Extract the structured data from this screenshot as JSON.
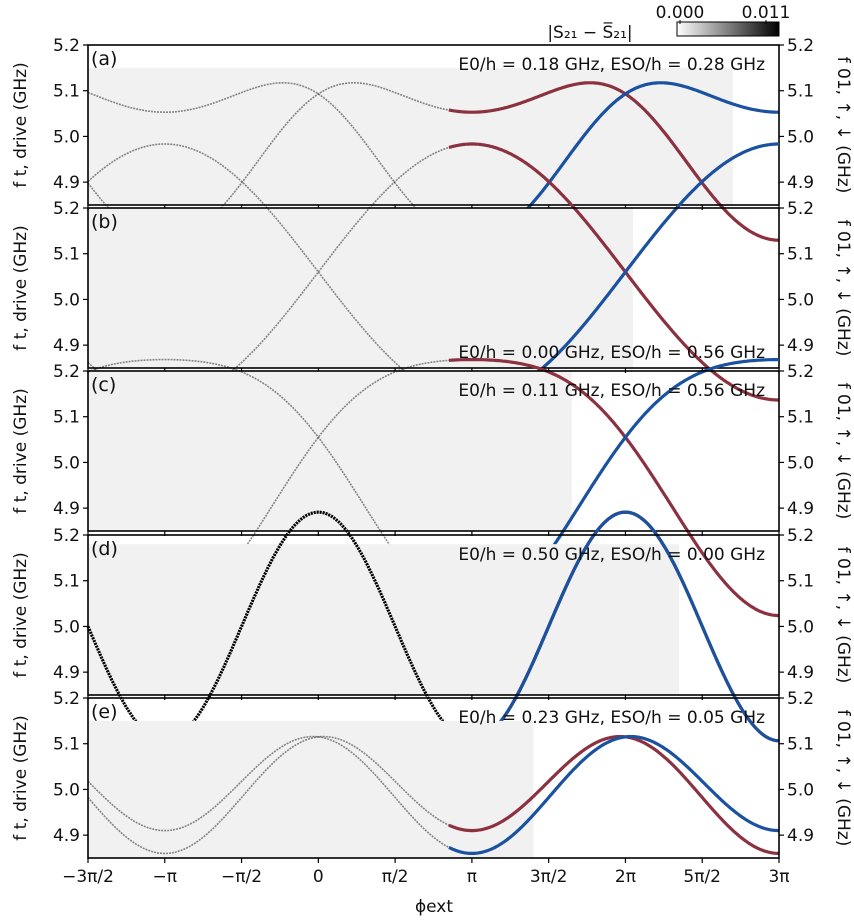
{
  "colors": {
    "red_series": "#8b3140",
    "blue_series": "#1a52a0",
    "data_shade": "#000000",
    "frame": "#000000"
  },
  "colorbar": {
    "title": "|S₂₁ − S̅₂₁|",
    "min_label": "0.000",
    "max_label": "0.011",
    "min": 0.0,
    "max": 0.011
  },
  "x_axis": {
    "label": "ϕext",
    "range_pi": [
      -1.5,
      3.0
    ],
    "ticks_pi": [
      -1.5,
      -1.0,
      -0.5,
      0.0,
      0.5,
      1.0,
      1.5,
      2.0,
      2.5,
      3.0
    ],
    "tick_labels": [
      "−3π/2",
      "−π",
      "−π/2",
      "0",
      "π/2",
      "π",
      "3π/2",
      "2π",
      "5π/2",
      "3π"
    ]
  },
  "y_left_label": "f t, drive (GHz)",
  "y_right_label": "f 01, ↑, ↓ (GHz)",
  "y_ticks": [
    "5.2",
    "5.1",
    "5.0",
    "4.9"
  ],
  "chart_data": [
    {
      "type": "line",
      "panel_label": "(a)",
      "annotation": "E0/h = 0.18 GHz, ESO/h = 0.28 GHz",
      "E0_GHz": 0.18,
      "ESO_GHz": 0.28,
      "center_GHz": 5.0,
      "dip_GHz": 0.003,
      "ylim": [
        4.85,
        5.2
      ],
      "data_ymax": 5.15,
      "data_x_range_pi": [
        -1.5,
        2.7
      ],
      "model_x_range_pi": [
        0.85,
        3.0
      ],
      "series": [
        {
          "color": "red",
          "values_GHz": []
        },
        {
          "color": "blue",
          "values_GHz": []
        }
      ]
    },
    {
      "type": "line",
      "panel_label": "(b)",
      "annotation": "E0/h = 0.00 GHz, ESO/h = 0.56 GHz",
      "E0_GHz": 0.0,
      "ESO_GHz": 0.56,
      "center_GHz": 5.06,
      "dip_GHz": 0.0,
      "ylim": [
        4.85,
        5.2
      ],
      "data_ymax": 5.2,
      "data_x_range_pi": [
        -1.5,
        2.05
      ],
      "model_x_range_pi": [
        0.85,
        3.0
      ],
      "series": [
        {
          "color": "red"
        },
        {
          "color": "blue"
        }
      ]
    },
    {
      "type": "line",
      "panel_label": "(c)",
      "annotation": "E0/h = 0.11 GHz, ESO/h = 0.56 GHz",
      "E0_GHz": 0.11,
      "ESO_GHz": 0.56,
      "center_GHz": 5.0,
      "dip_GHz": 0.0,
      "ylim": [
        4.85,
        5.2
      ],
      "data_ymax": 5.2,
      "data_x_range_pi": [
        -1.5,
        1.65
      ],
      "model_x_range_pi": [
        0.85,
        3.0
      ],
      "series": [
        {
          "color": "red"
        },
        {
          "color": "blue"
        }
      ]
    },
    {
      "type": "line",
      "panel_label": "(d)",
      "annotation": "E0/h = 0.50 GHz, ESO/h = 0.00 GHz",
      "E0_GHz": 0.5,
      "ESO_GHz": 0.0,
      "center_GHz": 5.0,
      "dip_GHz": 0.0,
      "ylim": [
        4.85,
        5.2
      ],
      "data_ymax": 5.18,
      "data_x_range_pi": [
        -1.5,
        2.35
      ],
      "model_x_range_pi": [
        0.85,
        3.0
      ],
      "series": [
        {
          "color": "red"
        },
        {
          "color": "blue"
        }
      ]
    },
    {
      "type": "line",
      "panel_label": "(e)",
      "annotation": "E0/h = 0.23 GHz, ESO/h = 0.05 GHz",
      "E0_GHz": 0.23,
      "ESO_GHz": 0.05,
      "center_GHz": 5.0,
      "dip_GHz": 0.0,
      "ylim": [
        4.85,
        5.2
      ],
      "data_ymax": 5.15,
      "data_x_range_pi": [
        -1.5,
        1.4
      ],
      "model_x_range_pi": [
        0.85,
        3.0
      ],
      "series": [
        {
          "color": "red"
        },
        {
          "color": "blue"
        }
      ]
    }
  ]
}
